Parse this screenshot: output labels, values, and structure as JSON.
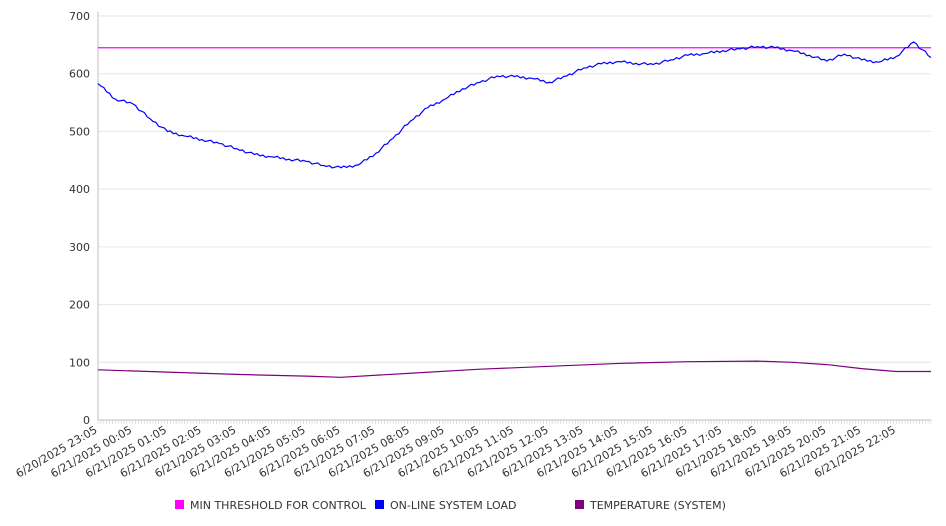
{
  "chart_data": {
    "type": "line",
    "x_tick_labels": [
      "6/20/2025 23:05",
      "6/21/2025 00:05",
      "6/21/2025 01:05",
      "6/21/2025 02:05",
      "6/21/2025 03:05",
      "6/21/2025 04:05",
      "6/21/2025 05:05",
      "6/21/2025 06:05",
      "6/21/2025 07:05",
      "6/21/2025 08:05",
      "6/21/2025 09:05",
      "6/21/2025 10:05",
      "6/21/2025 11:05",
      "6/21/2025 12:05",
      "6/21/2025 13:05",
      "6/21/2025 14:05",
      "6/21/2025 15:05",
      "6/21/2025 16:05",
      "6/21/2025 17:05",
      "6/21/2025 18:05",
      "6/21/2025 19:05",
      "6/21/2025 20:05",
      "6/21/2025 21:05",
      "6/21/2025 22:05"
    ],
    "y_ticks": [
      0,
      100,
      200,
      300,
      400,
      500,
      600,
      700
    ],
    "ylim": [
      0,
      700
    ],
    "grid": true,
    "legend_position": "bottom",
    "series": [
      {
        "name": "MIN THRESHOLD FOR CONTROL",
        "color": "#ff00ff",
        "x": [
          "6/20/2025 23:05",
          "6/21/2025 23:05"
        ],
        "values": [
          645,
          645
        ]
      },
      {
        "name": "ON-LINE SYSTEM LOAD",
        "color": "#0000ff",
        "x": [
          "6/20/2025 23:05",
          "6/20/2025 23:35",
          "6/21/2025 00:05",
          "6/21/2025 00:35",
          "6/21/2025 01:05",
          "6/21/2025 01:35",
          "6/21/2025 02:05",
          "6/21/2025 02:35",
          "6/21/2025 03:05",
          "6/21/2025 03:35",
          "6/21/2025 04:05",
          "6/21/2025 04:35",
          "6/21/2025 05:05",
          "6/21/2025 05:35",
          "6/21/2025 06:05",
          "6/21/2025 06:35",
          "6/21/2025 07:05",
          "6/21/2025 07:35",
          "6/21/2025 08:05",
          "6/21/2025 08:35",
          "6/21/2025 09:05",
          "6/21/2025 09:35",
          "6/21/2025 10:05",
          "6/21/2025 10:35",
          "6/21/2025 11:05",
          "6/21/2025 11:35",
          "6/21/2025 12:05",
          "6/21/2025 12:35",
          "6/21/2025 13:05",
          "6/21/2025 13:35",
          "6/21/2025 14:05",
          "6/21/2025 14:35",
          "6/21/2025 15:05",
          "6/21/2025 15:35",
          "6/21/2025 16:05",
          "6/21/2025 16:35",
          "6/21/2025 17:05",
          "6/21/2025 17:35",
          "6/21/2025 18:05",
          "6/21/2025 18:35",
          "6/21/2025 19:05",
          "6/21/2025 19:35",
          "6/21/2025 20:05",
          "6/21/2025 20:35",
          "6/21/2025 21:05",
          "6/21/2025 21:35",
          "6/21/2025 22:05",
          "6/21/2025 22:35",
          "6/21/2025 23:05"
        ],
        "values": [
          583,
          556,
          548,
          522,
          500,
          492,
          486,
          479,
          470,
          460,
          456,
          452,
          448,
          441,
          437,
          442,
          462,
          488,
          518,
          541,
          556,
          574,
          585,
          596,
          595,
          592,
          585,
          596,
          610,
          617,
          621,
          618,
          616,
          624,
          632,
          635,
          640,
          643,
          647,
          645,
          640,
          632,
          622,
          634,
          624,
          620,
          630,
          655,
          628
        ]
      },
      {
        "name": "TEMPERATURE (SYSTEM)",
        "color": "#800080",
        "x": [
          "6/20/2025 23:05",
          "6/21/2025 01:05",
          "6/21/2025 03:05",
          "6/21/2025 05:05",
          "6/21/2025 06:05",
          "6/21/2025 08:05",
          "6/21/2025 10:05",
          "6/21/2025 12:05",
          "6/21/2025 14:05",
          "6/21/2025 16:05",
          "6/21/2025 18:05",
          "6/21/2025 19:05",
          "6/21/2025 20:05",
          "6/21/2025 21:05",
          "6/21/2025 22:05",
          "6/21/2025 23:05"
        ],
        "values": [
          87,
          83,
          79,
          76,
          74,
          81,
          88,
          93,
          98,
          101,
          102,
          100,
          96,
          89,
          84,
          84
        ]
      }
    ]
  }
}
